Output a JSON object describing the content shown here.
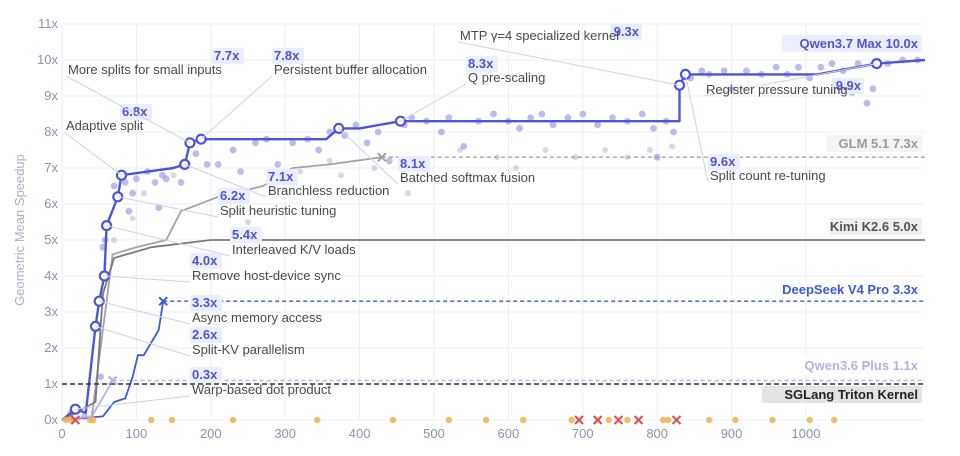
{
  "chart_data": {
    "type": "line",
    "xlabel": "",
    "ylabel": "Geometric Mean Speedup",
    "xlim": [
      0,
      1160
    ],
    "ylim": [
      0,
      11
    ],
    "x_ticks": [
      "0",
      "100",
      "200",
      "300",
      "400",
      "500",
      "600",
      "700",
      "800",
      "900",
      "1000"
    ],
    "y_ticks": [
      "0x",
      "1x",
      "2x",
      "3x",
      "4x",
      "5x",
      "6x",
      "7x",
      "8x",
      "9x",
      "10x",
      "11x"
    ],
    "grid": true,
    "colors": {
      "qwen37": "#4f55d8",
      "qwen37_points": "#8f8fe8",
      "glm": "#a3a3a3",
      "kimi": "#7a7a7a",
      "deepseek": "#3b5bd9",
      "qwen36": "#b7b0e8",
      "baseline": "#333333",
      "failed": "#e04b4b",
      "regressed": "#f0b14b"
    },
    "series": [
      {
        "name": "Qwen3.7 Max 10.0x",
        "final": 10.0,
        "points": [
          [
            0,
            0
          ],
          [
            18,
            0.3
          ],
          [
            32,
            0.2
          ],
          [
            45,
            2.6
          ],
          [
            50,
            3.3
          ],
          [
            57,
            4.0
          ],
          [
            60,
            5.4
          ],
          [
            75,
            6.2
          ],
          [
            80,
            6.8
          ],
          [
            150,
            7.0
          ],
          [
            165,
            7.1
          ],
          [
            172,
            7.7
          ],
          [
            187,
            7.8
          ],
          [
            355,
            7.8
          ],
          [
            372,
            8.1
          ],
          [
            400,
            8.1
          ],
          [
            455,
            8.3
          ],
          [
            830,
            8.3
          ],
          [
            830,
            9.3
          ],
          [
            838,
            9.6
          ],
          [
            1015,
            9.6
          ],
          [
            1095,
            9.9
          ],
          [
            1160,
            10.0
          ]
        ]
      },
      {
        "name": "GLM 5.1 7.3x",
        "final": 7.3,
        "points": [
          [
            0,
            0
          ],
          [
            40,
            0.1
          ],
          [
            55,
            2.5
          ],
          [
            68,
            4.6
          ],
          [
            100,
            4.8
          ],
          [
            140,
            5.0
          ],
          [
            160,
            5.8
          ],
          [
            210,
            6.2
          ],
          [
            270,
            6.5
          ],
          [
            310,
            7.0
          ],
          [
            360,
            7.1
          ],
          [
            430,
            7.3
          ],
          [
            1160,
            7.3
          ]
        ]
      },
      {
        "name": "Kimi K2.6 5.0x",
        "final": 5.0,
        "points": [
          [
            0,
            0
          ],
          [
            45,
            0.5
          ],
          [
            55,
            3.5
          ],
          [
            70,
            4.5
          ],
          [
            120,
            4.8
          ],
          [
            200,
            5.0
          ],
          [
            1160,
            5.0
          ]
        ]
      },
      {
        "name": "DeepSeek V4 Pro 3.3x",
        "final": 3.3,
        "points": [
          [
            0,
            0
          ],
          [
            55,
            0.1
          ],
          [
            70,
            0.5
          ],
          [
            85,
            0.6
          ],
          [
            95,
            1.2
          ],
          [
            102,
            1.8
          ],
          [
            110,
            1.8
          ],
          [
            130,
            2.5
          ],
          [
            136,
            3.3
          ],
          [
            1160,
            3.3
          ]
        ]
      },
      {
        "name": "Qwen3.6 Plus 1.1x",
        "final": 1.1,
        "points": [
          [
            0,
            0
          ],
          [
            40,
            0.1
          ],
          [
            60,
            0.8
          ],
          [
            68,
            1.1
          ],
          [
            1160,
            1.1
          ]
        ]
      },
      {
        "name": "SGLang Triton Kernel",
        "final": 1.0,
        "points": [
          [
            0,
            1.0
          ],
          [
            1160,
            1.0
          ]
        ]
      }
    ],
    "annotations": [
      {
        "value": "0.3x",
        "text": "Warp-based dot product",
        "x": 18,
        "y": 0.3
      },
      {
        "value": "2.6x",
        "text": "Split-KV parallelism",
        "x": 45,
        "y": 2.6
      },
      {
        "value": "3.3x",
        "text": "Async memory access",
        "x": 50,
        "y": 3.3
      },
      {
        "value": "4.0x",
        "text": "Remove host-device sync",
        "x": 57,
        "y": 4.0
      },
      {
        "value": "5.4x",
        "text": "Interleaved K/V loads",
        "x": 60,
        "y": 5.4
      },
      {
        "value": "6.2x",
        "text": "Split heuristic tuning",
        "x": 75,
        "y": 6.2
      },
      {
        "value": "6.8x",
        "text": "Adaptive split",
        "x": 80,
        "y": 6.8
      },
      {
        "value": "7.1x",
        "text": "Branchless reduction",
        "x": 165,
        "y": 7.1
      },
      {
        "value": "7.7x",
        "text": "More splits for small inputs",
        "x": 172,
        "y": 7.7
      },
      {
        "value": "7.8x",
        "text": "Persistent buffer allocation",
        "x": 187,
        "y": 7.8
      },
      {
        "value": "8.1x",
        "text": "Batched softmax fusion",
        "x": 372,
        "y": 8.1
      },
      {
        "value": "8.3x",
        "text": "Q pre-scaling",
        "x": 455,
        "y": 8.3
      },
      {
        "value": "9.3x",
        "text": "MTP γ=4 specialized kernel",
        "x": 830,
        "y": 9.3
      },
      {
        "value": "9.6x",
        "text": "Split count re-tuning",
        "x": 838,
        "y": 9.6
      },
      {
        "value": "9.9x",
        "text": "Register pressure tuning",
        "x": 1095,
        "y": 9.9
      }
    ],
    "failed_attempts_x": [
      18,
      695,
      720,
      748,
      775,
      826
    ],
    "regression_attempts_x": [
      5,
      12,
      38,
      42,
      120,
      148,
      230,
      343,
      445,
      520,
      570,
      620,
      685,
      735,
      760,
      808,
      815,
      870,
      905,
      955,
      1005,
      1038
    ],
    "qwen37_attempts": [
      [
        12,
        0.2
      ],
      [
        30,
        0.1
      ],
      [
        52,
        1.2
      ],
      [
        55,
        4.8
      ],
      [
        58,
        5.0
      ],
      [
        70,
        6.5
      ],
      [
        85,
        6.6
      ],
      [
        90,
        5.8
      ],
      [
        95,
        6.3
      ],
      [
        100,
        6.7
      ],
      [
        115,
        6.9
      ],
      [
        125,
        6.6
      ],
      [
        130,
        5.9
      ],
      [
        135,
        6.8
      ],
      [
        140,
        6.7
      ],
      [
        160,
        6.6
      ],
      [
        180,
        7.4
      ],
      [
        195,
        7.1
      ],
      [
        210,
        7.1
      ],
      [
        230,
        7.5
      ],
      [
        240,
        6.9
      ],
      [
        260,
        7.7
      ],
      [
        275,
        7.8
      ],
      [
        290,
        7.1
      ],
      [
        310,
        7.7
      ],
      [
        330,
        7.8
      ],
      [
        345,
        7.5
      ],
      [
        360,
        8.0
      ],
      [
        380,
        7.9
      ],
      [
        395,
        8.2
      ],
      [
        410,
        7.7
      ],
      [
        425,
        8.0
      ],
      [
        440,
        7.2
      ],
      [
        460,
        8.2
      ],
      [
        470,
        8.4
      ],
      [
        490,
        8.3
      ],
      [
        510,
        8.0
      ],
      [
        520,
        8.4
      ],
      [
        540,
        7.6
      ],
      [
        560,
        8.3
      ],
      [
        580,
        8.5
      ],
      [
        600,
        8.3
      ],
      [
        615,
        8.1
      ],
      [
        630,
        8.4
      ],
      [
        645,
        8.5
      ],
      [
        660,
        8.2
      ],
      [
        680,
        8.4
      ],
      [
        700,
        8.5
      ],
      [
        720,
        8.2
      ],
      [
        740,
        8.4
      ],
      [
        760,
        8.3
      ],
      [
        780,
        8.5
      ],
      [
        795,
        8.1
      ],
      [
        800,
        7.3
      ],
      [
        812,
        8.3
      ],
      [
        822,
        8.0
      ],
      [
        845,
        9.5
      ],
      [
        860,
        9.7
      ],
      [
        870,
        9.6
      ],
      [
        890,
        9.7
      ],
      [
        900,
        9.2
      ],
      [
        920,
        9.7
      ],
      [
        940,
        9.6
      ],
      [
        960,
        9.8
      ],
      [
        975,
        9.6
      ],
      [
        990,
        9.8
      ],
      [
        1005,
        9.5
      ],
      [
        1020,
        9.8
      ],
      [
        1035,
        9.9
      ],
      [
        1050,
        9.7
      ],
      [
        1062,
        9.1
      ],
      [
        1070,
        9.9
      ],
      [
        1082,
        8.8
      ],
      [
        1090,
        9.2
      ],
      [
        1110,
        9.9
      ],
      [
        1130,
        10.0
      ],
      [
        1150,
        10.0
      ]
    ],
    "glm_attempts": [
      [
        70,
        5.0
      ],
      [
        95,
        5.6
      ],
      [
        110,
        6.3
      ],
      [
        150,
        6.8
      ],
      [
        250,
        5.5
      ],
      [
        320,
        6.9
      ],
      [
        360,
        7.2
      ],
      [
        375,
        6.8
      ],
      [
        420,
        7.0
      ],
      [
        465,
        6.3
      ],
      [
        535,
        7.5
      ],
      [
        585,
        7.3
      ],
      [
        610,
        7.0
      ],
      [
        650,
        7.5
      ],
      [
        690,
        7.3
      ],
      [
        730,
        7.5
      ],
      [
        760,
        7.3
      ],
      [
        790,
        7.5
      ],
      [
        820,
        7.6
      ]
    ]
  }
}
